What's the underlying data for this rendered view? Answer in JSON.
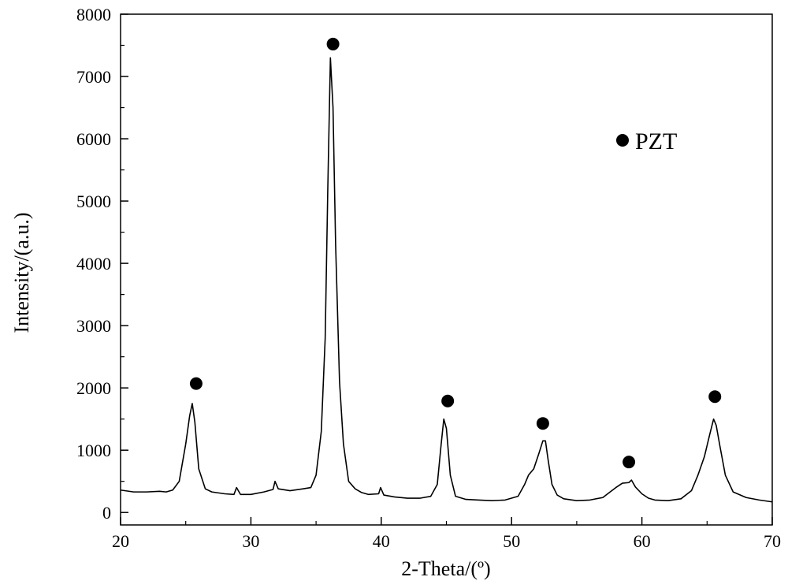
{
  "chart_data": {
    "type": "line",
    "title": "",
    "xlabel": "2-Theta/(º)",
    "ylabel": "Intensity/(a.u.)",
    "xlim": [
      20,
      70
    ],
    "ylim": [
      -200,
      8000
    ],
    "x_ticks": [
      20,
      30,
      40,
      50,
      60,
      70
    ],
    "y_ticks": [
      0,
      1000,
      2000,
      3000,
      4000,
      5000,
      6000,
      7000,
      8000
    ],
    "grid": false,
    "legend": {
      "position": "top-right",
      "entries": [
        {
          "marker": "filled-circle",
          "label": "PZT"
        }
      ]
    },
    "series": [
      {
        "x": [
          20,
          21,
          22,
          23,
          23.5,
          24,
          24.5,
          25,
          25.3,
          25.5,
          25.7,
          26,
          26.5,
          27,
          28,
          28.7,
          28.9,
          29.2,
          30,
          31,
          31.7,
          31.85,
          32.1,
          33,
          34,
          34.6,
          35,
          35.4,
          35.7,
          35.9,
          36.1,
          36.3,
          36.5,
          36.8,
          37.1,
          37.5,
          38,
          38.5,
          39,
          39.8,
          39.95,
          40.2,
          41,
          42,
          43,
          43.8,
          44.3,
          44.6,
          44.8,
          45,
          45.3,
          45.7,
          46.5,
          47.5,
          48.5,
          49.5,
          50.5,
          51,
          51.3,
          51.7,
          52.1,
          52.4,
          52.6,
          52.8,
          53.1,
          53.5,
          54,
          55,
          56,
          57,
          57.5,
          58,
          58.5,
          59,
          59.2,
          59.5,
          60,
          60.5,
          61,
          62,
          63,
          63.8,
          64.3,
          64.8,
          65.2,
          65.5,
          65.7,
          66,
          66.4,
          67,
          68,
          69,
          70
        ],
        "y": [
          360,
          330,
          330,
          340,
          330,
          360,
          500,
          1100,
          1550,
          1750,
          1450,
          700,
          380,
          330,
          300,
          290,
          400,
          290,
          290,
          330,
          370,
          500,
          380,
          350,
          380,
          400,
          600,
          1300,
          2800,
          5200,
          7300,
          6500,
          4300,
          2100,
          1100,
          500,
          380,
          320,
          290,
          300,
          400,
          280,
          250,
          230,
          230,
          260,
          450,
          1100,
          1500,
          1350,
          600,
          260,
          210,
          200,
          190,
          200,
          260,
          450,
          600,
          700,
          950,
          1150,
          1150,
          850,
          450,
          280,
          220,
          190,
          200,
          240,
          320,
          400,
          470,
          480,
          520,
          410,
          300,
          230,
          200,
          190,
          220,
          350,
          600,
          900,
          1250,
          1500,
          1400,
          1050,
          600,
          330,
          240,
          200,
          170
        ]
      }
    ],
    "markers": [
      {
        "x": 25.8,
        "y": 2070
      },
      {
        "x": 36.3,
        "y": 7520
      },
      {
        "x": 45.1,
        "y": 1790
      },
      {
        "x": 52.4,
        "y": 1430
      },
      {
        "x": 59.0,
        "y": 810
      },
      {
        "x": 65.6,
        "y": 1860
      }
    ],
    "colors": {
      "line": "#000000",
      "marker": "#000000",
      "axis": "#000000"
    }
  }
}
